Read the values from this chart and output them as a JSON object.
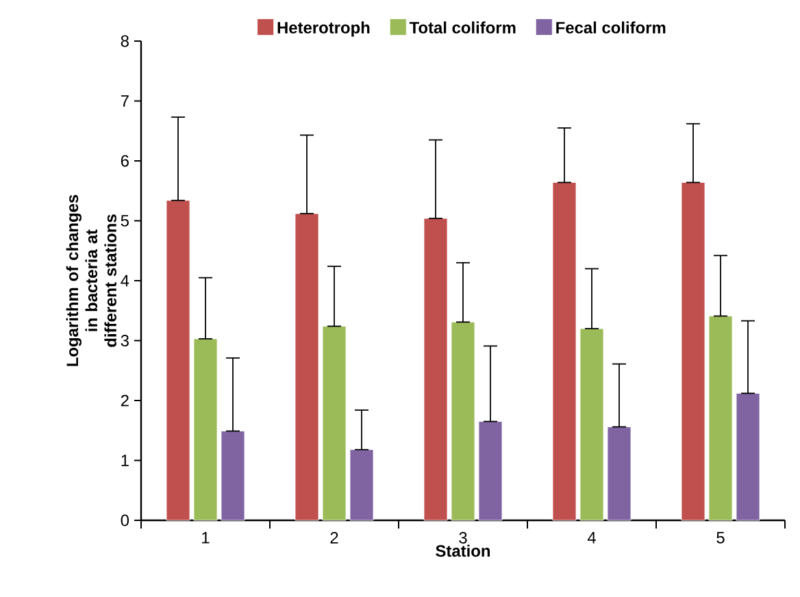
{
  "chart_data": {
    "type": "bar",
    "xlabel": "Station",
    "ylabel": "Logarithm of changes in bacteria at different stations",
    "categories": [
      "1",
      "2",
      "3",
      "4",
      "5"
    ],
    "series": [
      {
        "name": "Heterotroph",
        "color": "#c0504d",
        "values": [
          5.34,
          5.12,
          5.04,
          5.64,
          5.64
        ],
        "errors": [
          [
            5.34,
            6.73
          ],
          [
            5.12,
            6.43
          ],
          [
            5.04,
            6.35
          ],
          [
            5.64,
            6.55
          ],
          [
            5.64,
            6.62
          ]
        ]
      },
      {
        "name": "Total coliform",
        "color": "#9bbb59",
        "values": [
          3.03,
          3.24,
          3.31,
          3.2,
          3.41
        ],
        "errors": [
          [
            3.03,
            4.05
          ],
          [
            3.24,
            4.24
          ],
          [
            3.31,
            4.3
          ],
          [
            3.2,
            4.2
          ],
          [
            3.41,
            4.42
          ]
        ]
      },
      {
        "name": "Fecal coliform",
        "color": "#8064a2",
        "values": [
          1.49,
          1.18,
          1.65,
          1.56,
          2.12
        ],
        "errors": [
          [
            1.49,
            2.71
          ],
          [
            1.18,
            1.84
          ],
          [
            1.65,
            2.91
          ],
          [
            1.56,
            2.61
          ],
          [
            2.12,
            3.33
          ]
        ]
      }
    ],
    "ylim": [
      0,
      8
    ],
    "yticks": [
      0,
      1,
      2,
      3,
      4,
      5,
      6,
      7,
      8
    ],
    "legend": "top",
    "grid": false
  }
}
